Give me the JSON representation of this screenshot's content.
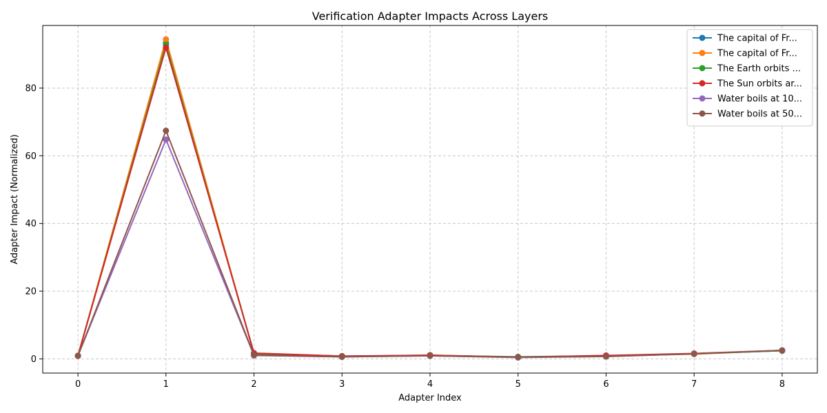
{
  "chart_data": {
    "type": "line",
    "title": "Verification Adapter Impacts Across Layers",
    "xlabel": "Adapter Index",
    "ylabel": "Adapter Impact (Normalized)",
    "x": [
      0,
      1,
      2,
      3,
      4,
      5,
      6,
      7,
      8
    ],
    "xlim": [
      -0.4,
      8.4
    ],
    "ylim": [
      -4.2,
      98.5
    ],
    "xticks": [
      0,
      1,
      2,
      3,
      4,
      5,
      6,
      7,
      8
    ],
    "yticks": [
      0,
      20,
      40,
      60,
      80
    ],
    "grid": true,
    "legend_position": "top-right",
    "series": [
      {
        "name": "The capital of Fr...",
        "color": "#1f77b4",
        "values": [
          0.9,
          93.3,
          1.6,
          0.8,
          1.0,
          0.5,
          0.9,
          1.5,
          2.4
        ]
      },
      {
        "name": "The capital of Fr...",
        "color": "#ff7f0e",
        "values": [
          0.9,
          94.4,
          1.4,
          0.7,
          1.1,
          0.5,
          0.9,
          1.4,
          2.5
        ]
      },
      {
        "name": "The Earth orbits ...",
        "color": "#2ca02c",
        "values": [
          0.9,
          92.8,
          1.5,
          0.8,
          1.0,
          0.6,
          0.9,
          1.5,
          2.4
        ]
      },
      {
        "name": "The Sun orbits ar...",
        "color": "#d62728",
        "values": [
          0.9,
          92.0,
          1.7,
          0.8,
          1.1,
          0.5,
          1.0,
          1.6,
          2.5
        ]
      },
      {
        "name": "Water boils at 10...",
        "color": "#9467bd",
        "values": [
          0.9,
          64.8,
          1.0,
          0.6,
          0.9,
          0.4,
          0.7,
          1.5,
          2.5
        ]
      },
      {
        "name": "Water boils at 50...",
        "color": "#8c564b",
        "values": [
          0.9,
          67.4,
          1.1,
          0.6,
          0.9,
          0.5,
          0.7,
          1.5,
          2.5
        ]
      }
    ]
  }
}
